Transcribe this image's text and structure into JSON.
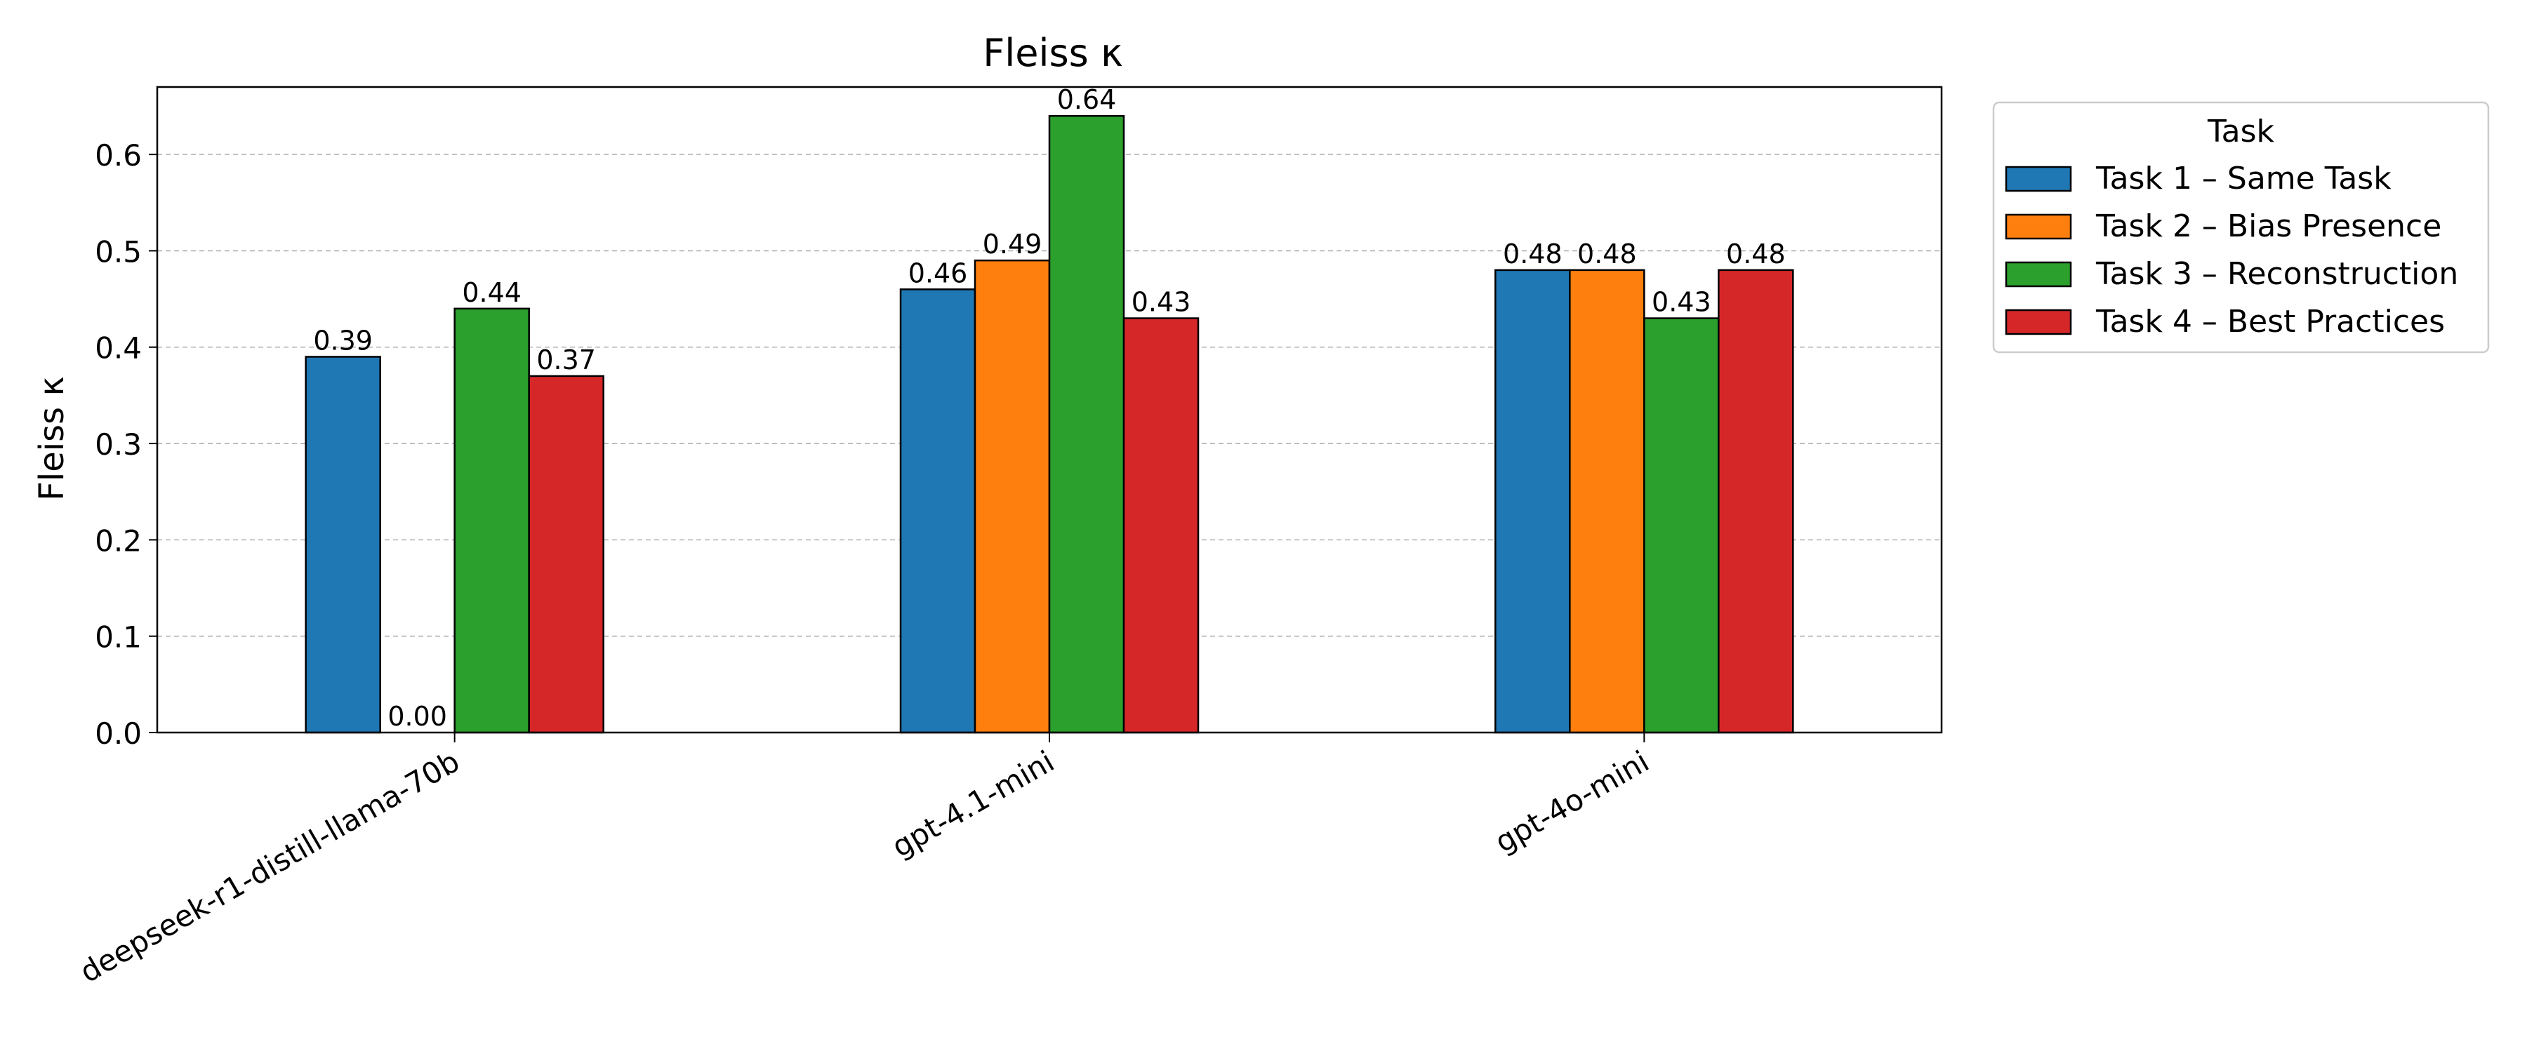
{
  "chart_data": {
    "type": "bar",
    "title": "Fleiss κ",
    "xlabel": "",
    "ylabel": "Fleiss κ",
    "ylim": [
      0,
      0.67
    ],
    "yticks": [
      "0.0",
      "0.1",
      "0.2",
      "0.3",
      "0.4",
      "0.5",
      "0.6"
    ],
    "grid": true,
    "legend_title": "Task",
    "legend_position": "outside-top-right",
    "categories": [
      "deepseek-r1-distill-llama-70b",
      "gpt-4.1-mini",
      "gpt-4o-mini"
    ],
    "series": [
      {
        "name": "Task 1 – Same Task",
        "color": "#1f77b4",
        "values": [
          0.39,
          0.46,
          0.48
        ],
        "labels": [
          "0.39",
          "0.46",
          "0.48"
        ]
      },
      {
        "name": "Task 2 – Bias Presence",
        "color": "#ff7f0e",
        "values": [
          0.0,
          0.49,
          0.48
        ],
        "labels": [
          "0.00",
          "0.49",
          "0.48"
        ]
      },
      {
        "name": "Task 3 – Reconstruction",
        "color": "#2ca02c",
        "values": [
          0.44,
          0.64,
          0.43
        ],
        "labels": [
          "0.44",
          "0.64",
          "0.43"
        ]
      },
      {
        "name": "Task 4 – Best Practices",
        "color": "#d62728",
        "values": [
          0.37,
          0.43,
          0.48
        ],
        "labels": [
          "0.37",
          "0.43",
          "0.48"
        ]
      }
    ]
  }
}
